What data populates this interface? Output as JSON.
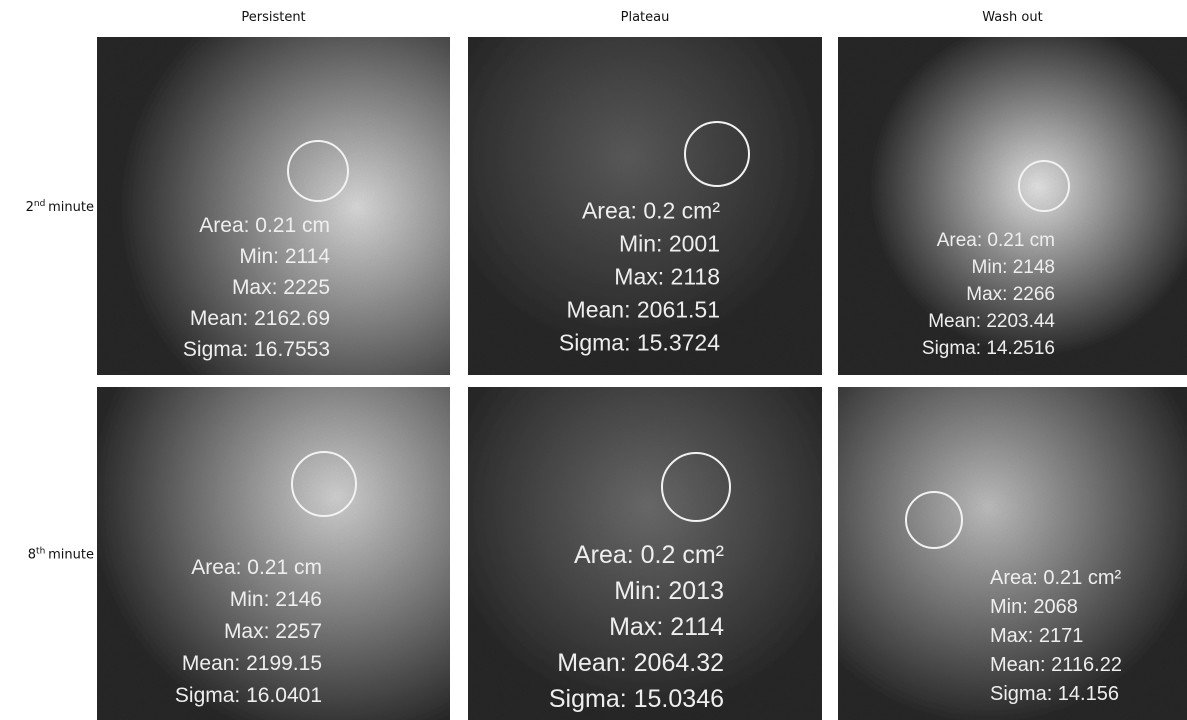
{
  "columns": [
    "Persistent",
    "Plateau",
    "Wash out"
  ],
  "rows": [
    {
      "label": {
        "num": "2",
        "sup": "nd",
        "text": "minute"
      },
      "panels": [
        {
          "lines": [
            "Area: 0.21 cm",
            "Min: 2114",
            "Max: 2225",
            "Mean: 2162.69",
            "Sigma: 16.7553"
          ]
        },
        {
          "lines": [
            "Area: 0.2 cm²",
            "Min: 2001",
            "Max: 2118",
            "Mean: 2061.51",
            "Sigma: 15.3724"
          ]
        },
        {
          "lines": [
            "Area: 0.21 cm",
            "Min: 2148",
            "Max: 2266",
            "Mean: 2203.44",
            "Sigma: 14.2516"
          ]
        }
      ]
    },
    {
      "label": {
        "num": "8",
        "sup": "th",
        "text": "minute"
      },
      "panels": [
        {
          "lines": [
            "Area: 0.21 cm",
            "Min: 2146",
            "Max: 2257",
            "Mean: 2199.15",
            "Sigma: 16.0401"
          ]
        },
        {
          "lines": [
            "Area: 0.2 cm²",
            "Min: 2013",
            "Max: 2114",
            "Mean: 2064.32",
            "Sigma: 15.0346"
          ]
        },
        {
          "lines": [
            "Area: 0.21 cm²",
            "Min: 2068",
            "Max: 2171",
            "Mean: 2116.22",
            "Sigma: 14.156"
          ]
        }
      ]
    }
  ]
}
